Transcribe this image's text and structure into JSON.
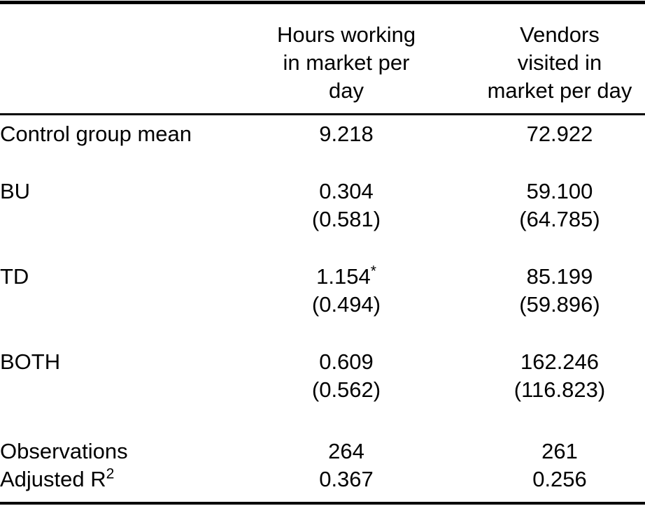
{
  "page": {
    "background_color": "#ffffff",
    "text_color": "#000000",
    "rule_color": "#000000"
  },
  "table": {
    "header": {
      "hours": "Hours working\nin market per\nday",
      "vendors": "Vendors\nvisited in\nmarket per day"
    },
    "rows": {
      "control": {
        "label": "Control group mean",
        "hours": "9.218",
        "vendors": "72.922"
      },
      "bu": {
        "label": "BU",
        "hours_est": "0.304",
        "hours_stars": "",
        "hours_se": "(0.581)",
        "vendors_est": "59.100",
        "vendors_stars": "",
        "vendors_se": "(64.785)"
      },
      "td": {
        "label": "TD",
        "hours_est": "1.154",
        "hours_stars": "*",
        "hours_se": "(0.494)",
        "vendors_est": "85.199",
        "vendors_stars": "",
        "vendors_se": "(59.896)"
      },
      "both": {
        "label": "BOTH",
        "hours_est": "0.609",
        "hours_stars": "",
        "hours_se": "(0.562)",
        "vendors_est": "162.246",
        "vendors_stars": "",
        "vendors_se": "(116.823)"
      },
      "observations": {
        "label": "Observations",
        "hours": "264",
        "vendors": "261"
      },
      "adjusted_r2": {
        "label_base": "Adjusted R",
        "label_sup": "2",
        "hours": "0.367",
        "vendors": "0.256"
      }
    }
  }
}
